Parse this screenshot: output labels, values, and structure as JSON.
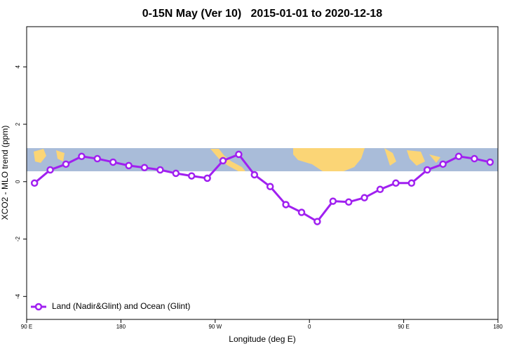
{
  "chart_data": {
    "type": "line",
    "title": "0-15N May (Ver 10)   2015-01-01 to 2020-12-18",
    "xlabel": "Longitude (deg E)",
    "ylabel": "XCO2 - MLO trend (ppm)",
    "x": [
      97.5,
      112.5,
      127.5,
      142.5,
      157.5,
      172.5,
      187.5,
      202.5,
      217.5,
      232.5,
      247.5,
      262.5,
      277.5,
      292.5,
      307.5,
      322.5,
      337.5,
      352.5,
      367.5,
      382.5,
      397.5,
      412.5,
      427.5,
      442.5,
      457.5,
      472.5,
      487.5,
      502.5,
      517.5,
      532.5
    ],
    "series": [
      {
        "name": "Land (Nadir&Glint) and Ocean (Glint)",
        "color": "#a020f0",
        "values": [
          -0.05,
          0.41,
          0.61,
          0.88,
          0.8,
          0.68,
          0.56,
          0.49,
          0.41,
          0.29,
          0.2,
          0.12,
          0.73,
          0.95,
          0.24,
          -0.17,
          -0.8,
          -1.07,
          -1.39,
          -0.68,
          -0.71,
          -0.56,
          -0.27,
          -0.05,
          -0.05,
          0.41,
          0.61,
          0.88,
          0.8,
          0.68
        ]
      }
    ],
    "xlim": [
      90,
      540
    ],
    "xticks": [
      {
        "value": 90,
        "label": "90 E"
      },
      180,
      {
        "value": 270,
        "label": "90 W"
      },
      {
        "value": 360,
        "label": "0"
      },
      {
        "value": 450,
        "label": "90 E"
      },
      {
        "value": 540,
        "label": "180"
      }
    ],
    "ylim": [
      -4.8,
      5.4
    ],
    "yticks": [
      -4,
      -2,
      0,
      2,
      4
    ],
    "legend": "bottom-left"
  }
}
